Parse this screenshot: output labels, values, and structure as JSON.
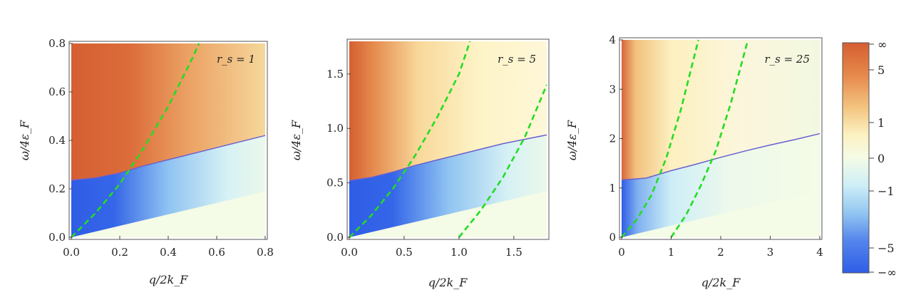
{
  "chart_data": [
    {
      "type": "heatmap",
      "panel_label": "r_s = 1",
      "xlabel": "q/2k_F",
      "ylabel": "ω/4ε_F",
      "xlim": [
        0,
        0.8
      ],
      "ylim": [
        0,
        0.8
      ],
      "xticks": [
        0.0,
        0.2,
        0.4,
        0.6,
        0.8
      ],
      "xtick_labels": [
        "0.0",
        "0.2",
        "0.4",
        "0.6",
        "0.8"
      ],
      "yticks": [
        0.0,
        0.2,
        0.4,
        0.6,
        0.8
      ],
      "ytick_labels": [
        "0.0",
        "0.2",
        "0.4",
        "0.6",
        "0.8"
      ],
      "boundary": [
        {
          "x": 0,
          "y": 0.235
        },
        {
          "x": 0.1,
          "y": 0.245
        },
        {
          "x": 0.2,
          "y": 0.265
        },
        {
          "x": 0.3,
          "y": 0.295
        },
        {
          "x": 0.4,
          "y": 0.32
        },
        {
          "x": 0.5,
          "y": 0.345
        },
        {
          "x": 0.6,
          "y": 0.37
        },
        {
          "x": 0.7,
          "y": 0.395
        },
        {
          "x": 0.8,
          "y": 0.42
        }
      ],
      "dashed_curves": [
        [
          {
            "x": 0,
            "y": 0
          },
          {
            "x": 0.1,
            "y": 0.1
          },
          {
            "x": 0.2,
            "y": 0.22
          },
          {
            "x": 0.3,
            "y": 0.37
          },
          {
            "x": 0.4,
            "y": 0.54
          },
          {
            "x": 0.5,
            "y": 0.74
          },
          {
            "x": 0.527,
            "y": 0.8
          }
        ]
      ]
    },
    {
      "type": "heatmap",
      "panel_label": "r_s = 5",
      "xlabel": "q/2k_F",
      "ylabel": "ω/4ε_F",
      "xlim": [
        0,
        1.8
      ],
      "ylim": [
        0,
        1.8
      ],
      "xticks": [
        0.0,
        0.5,
        1.0,
        1.5
      ],
      "xtick_labels": [
        "0.0",
        "0.5",
        "1.0",
        "1.5"
      ],
      "yticks": [
        0.0,
        0.5,
        1.0,
        1.5
      ],
      "ytick_labels": [
        "0.0",
        "0.5",
        "1.0",
        "1.5"
      ],
      "boundary": [
        {
          "x": 0,
          "y": 0.52
        },
        {
          "x": 0.2,
          "y": 0.55
        },
        {
          "x": 0.4,
          "y": 0.6
        },
        {
          "x": 0.6,
          "y": 0.66
        },
        {
          "x": 0.8,
          "y": 0.71
        },
        {
          "x": 1.0,
          "y": 0.76
        },
        {
          "x": 1.2,
          "y": 0.81
        },
        {
          "x": 1.4,
          "y": 0.86
        },
        {
          "x": 1.6,
          "y": 0.9
        },
        {
          "x": 1.8,
          "y": 0.94
        }
      ],
      "dashed_curves": [
        [
          {
            "x": 0,
            "y": 0
          },
          {
            "x": 0.2,
            "y": 0.2
          },
          {
            "x": 0.4,
            "y": 0.45
          },
          {
            "x": 0.6,
            "y": 0.75
          },
          {
            "x": 0.8,
            "y": 1.1
          },
          {
            "x": 1.0,
            "y": 1.5
          },
          {
            "x": 1.1,
            "y": 1.8
          }
        ],
        [
          {
            "x": 1.0,
            "y": 0
          },
          {
            "x": 1.2,
            "y": 0.25
          },
          {
            "x": 1.4,
            "y": 0.55
          },
          {
            "x": 1.6,
            "y": 0.92
          },
          {
            "x": 1.8,
            "y": 1.4
          }
        ]
      ]
    },
    {
      "type": "heatmap",
      "panel_label": "r_s = 25",
      "xlabel": "q/2k_F",
      "ylabel": "ω/4ε_F",
      "xlim": [
        0,
        4
      ],
      "ylim": [
        0,
        4
      ],
      "xticks": [
        0,
        1,
        2,
        3,
        4
      ],
      "xtick_labels": [
        "0",
        "1",
        "2",
        "3",
        "4"
      ],
      "yticks": [
        0,
        1,
        2,
        3,
        4
      ],
      "ytick_labels": [
        "0",
        "1",
        "2",
        "3",
        "4"
      ],
      "boundary": [
        {
          "x": 0,
          "y": 1.16
        },
        {
          "x": 0.5,
          "y": 1.2
        },
        {
          "x": 1,
          "y": 1.35
        },
        {
          "x": 1.5,
          "y": 1.48
        },
        {
          "x": 2,
          "y": 1.62
        },
        {
          "x": 2.5,
          "y": 1.75
        },
        {
          "x": 3,
          "y": 1.87
        },
        {
          "x": 3.5,
          "y": 1.98
        },
        {
          "x": 4,
          "y": 2.1
        }
      ],
      "dashed_curves": [
        [
          {
            "x": 0,
            "y": 0
          },
          {
            "x": 0.3,
            "y": 0.35
          },
          {
            "x": 0.6,
            "y": 0.85
          },
          {
            "x": 0.9,
            "y": 1.6
          },
          {
            "x": 1.2,
            "y": 2.6
          },
          {
            "x": 1.55,
            "y": 4.0
          }
        ],
        [
          {
            "x": 1.0,
            "y": 0
          },
          {
            "x": 1.3,
            "y": 0.45
          },
          {
            "x": 1.6,
            "y": 1.05
          },
          {
            "x": 1.9,
            "y": 1.75
          },
          {
            "x": 2.2,
            "y": 2.7
          },
          {
            "x": 2.55,
            "y": 4.0
          }
        ]
      ]
    }
  ],
  "colorbar": {
    "tick_labels": [
      "∞",
      "5",
      "1",
      "0",
      "−1",
      "−5",
      "−∞"
    ],
    "colors": {
      "top": "#d55f32",
      "upper": "#f0b16a",
      "mid_upper": "#fcf1c2",
      "zero": "#f4fbe6",
      "mid_lower": "#c8ecf7",
      "lower": "#6f9df0",
      "bottom": "#2f5de6"
    }
  },
  "dashed_color": "#22dd22"
}
